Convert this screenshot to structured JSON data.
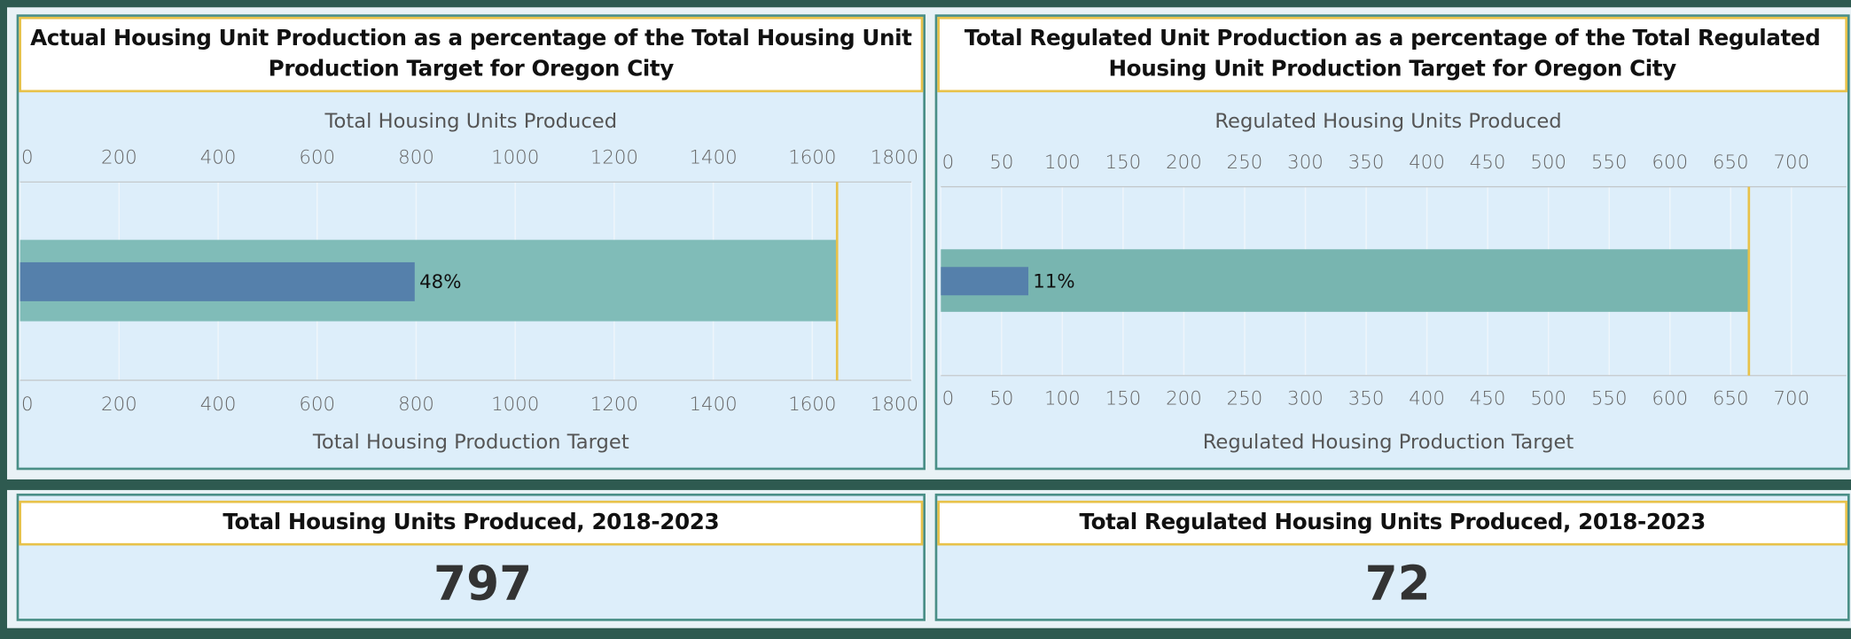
{
  "chart_data": [
    {
      "type": "bullet",
      "title": "Actual Housing Unit Production as a percentage of the Total Housing Unit Production Target for Oregon City",
      "xlabel": "Total Housing Units Produced",
      "x2label": "Total Housing Production Target",
      "values": [
        797
      ],
      "value_labels": [
        "48%"
      ],
      "target": 1650,
      "xlim": [
        0,
        1800
      ],
      "xticks": [
        0,
        200,
        400,
        600,
        800,
        1000,
        1200,
        1400,
        1600,
        1800
      ],
      "x2lim": [
        0,
        1800
      ],
      "x2ticks": [
        0,
        200,
        400,
        600,
        800,
        1000,
        1200,
        1400,
        1600,
        1800
      ],
      "color": "#5580ab",
      "band_color": "#80bcb8",
      "target_color": "#e8c24a"
    },
    {
      "type": "bullet",
      "title": "Total Regulated Unit Production as a percentage of the Total Regulated Housing Unit Production Target for Oregon City",
      "xlabel": "Regulated Housing Units Produced",
      "x2label": "Regulated Housing Production Target",
      "values": [
        72
      ],
      "value_labels": [
        "11%"
      ],
      "target": 665,
      "xlim": [
        0,
        750
      ],
      "xticks": [
        0,
        50,
        100,
        150,
        200,
        250,
        300,
        350,
        400,
        450,
        500,
        550,
        600,
        650,
        700
      ],
      "x2lim": [
        0,
        750
      ],
      "x2ticks": [
        0,
        50,
        100,
        150,
        200,
        250,
        300,
        350,
        400,
        450,
        500,
        550,
        600,
        650,
        700
      ],
      "color": "#5580ab",
      "band_color": "#78b5b0",
      "target_color": "#e8c24a"
    }
  ],
  "kpis": [
    {
      "title": "Total Housing Units Produced, 2018-2023",
      "value": 797
    },
    {
      "title": "Total Regulated Housing Units Produced, 2018-2023",
      "value": 72
    }
  ]
}
